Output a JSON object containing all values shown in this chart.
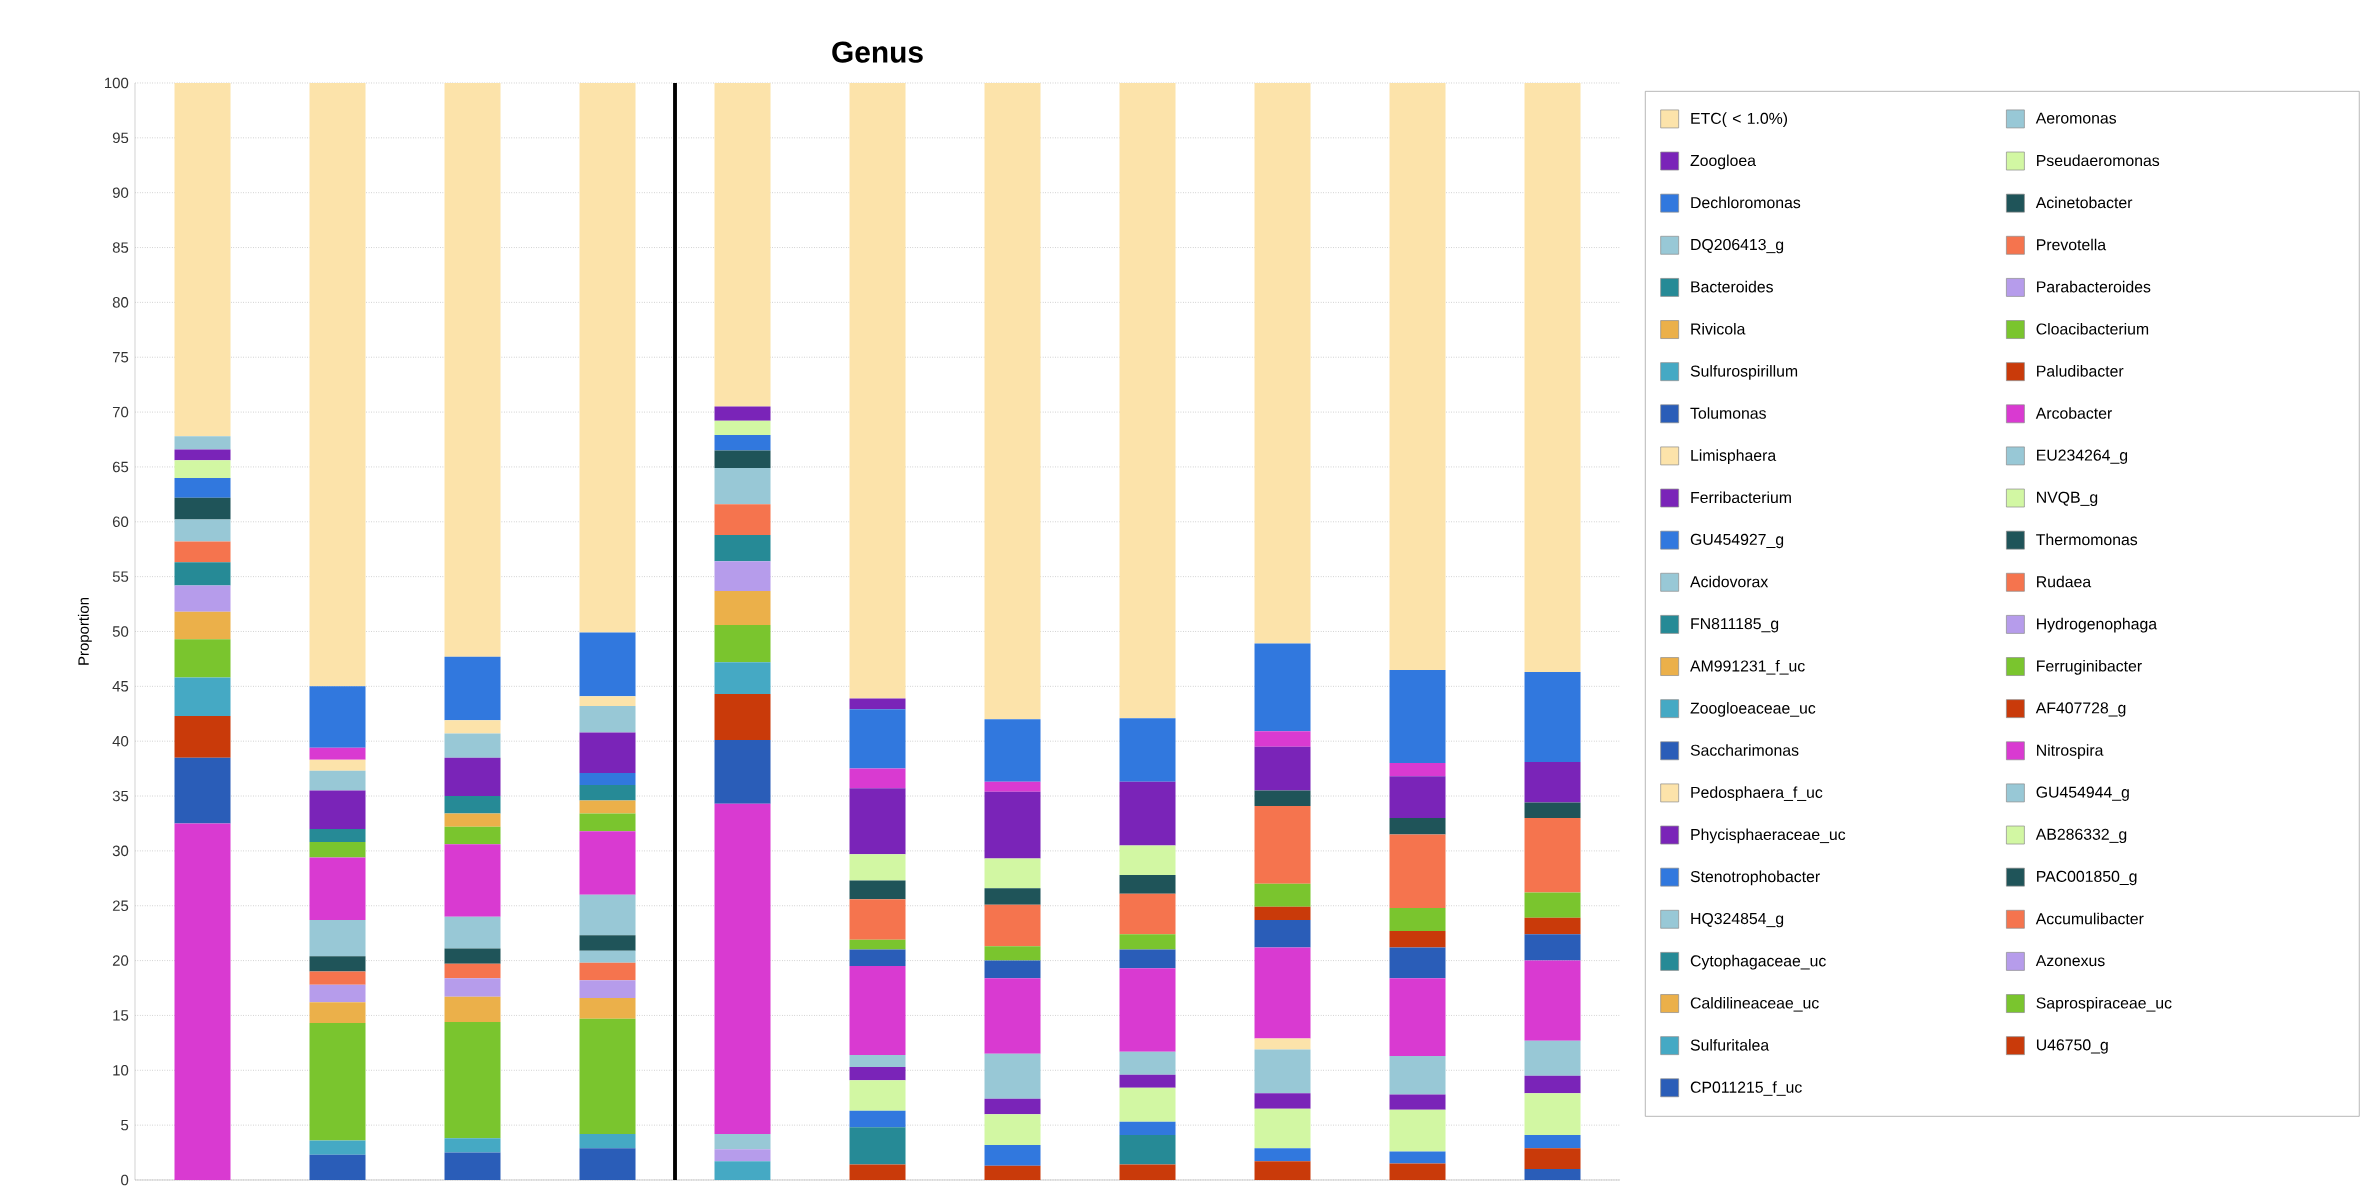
{
  "chart_data": {
    "type": "bar",
    "title": "Genus",
    "ylabel": "Proportion",
    "stacked": true,
    "categories": [
      null,
      null,
      null,
      null,
      null,
      null,
      null,
      null,
      null,
      null,
      null
    ],
    "ylim": [
      0,
      100
    ],
    "yticks": [
      0,
      5,
      10,
      15,
      20,
      25,
      30,
      35,
      40,
      45,
      50,
      55,
      60,
      65,
      70,
      75,
      80,
      85,
      90,
      95,
      100
    ],
    "grid": "y",
    "legend": "right",
    "series": [
      {
        "name": "CP011215_f_uc",
        "color": "#2a5db8",
        "values": [
          0,
          2.3,
          2.5,
          2.9,
          0,
          0,
          0,
          0,
          0,
          0,
          1.0
        ]
      },
      {
        "name": "U46750_g",
        "color": "#c93a0a",
        "values": [
          0,
          0,
          0,
          0,
          0,
          1.4,
          1.3,
          1.4,
          1.7,
          1.5,
          1.9
        ]
      },
      {
        "name": "Sulfuritalea",
        "color": "#45a9c4",
        "values": [
          0,
          1.3,
          1.3,
          1.3,
          1.7,
          0,
          0,
          0,
          0,
          0,
          0
        ]
      },
      {
        "name": "Saprospiraceae_uc",
        "color": "#7ac52e",
        "values": [
          0,
          10.7,
          10.6,
          10.5,
          0,
          0,
          0,
          0,
          0,
          0,
          0
        ]
      },
      {
        "name": "Caldilineaceae_uc",
        "color": "#ebb04a",
        "values": [
          0,
          1.9,
          2.3,
          1.9,
          0,
          0,
          0,
          0,
          0,
          0,
          0
        ]
      },
      {
        "name": "Azonexus",
        "color": "#b69ceb",
        "values": [
          0,
          1.6,
          1.7,
          1.6,
          1.1,
          0,
          0,
          0,
          0,
          0,
          0
        ]
      },
      {
        "name": "Cytophagaceae_uc",
        "color": "#268a96",
        "values": [
          0,
          0,
          0,
          0,
          0,
          3.4,
          0,
          2.7,
          0,
          0,
          0
        ]
      },
      {
        "name": "Accumulibacter",
        "color": "#f5744e",
        "values": [
          0,
          1.2,
          1.3,
          1.6,
          0,
          0,
          0,
          0,
          0,
          0,
          0
        ]
      },
      {
        "name": "HQ324854_g",
        "color": "#98c8d6",
        "values": [
          0,
          0,
          0,
          1.1,
          1.4,
          0,
          0,
          0,
          0,
          0,
          0
        ]
      },
      {
        "name": "PAC001850_g",
        "color": "#1f5459",
        "values": [
          0,
          1.4,
          1.4,
          1.4,
          0,
          0,
          0,
          0,
          0,
          0,
          0
        ]
      },
      {
        "name": "Stenotrophobacter",
        "color": "#3178de",
        "values": [
          0,
          0,
          0,
          0,
          0,
          1.5,
          1.9,
          1.2,
          1.2,
          1.1,
          1.2
        ]
      },
      {
        "name": "AB286332_g",
        "color": "#d2f7a3",
        "values": [
          0,
          0,
          0,
          0,
          0,
          2.8,
          2.8,
          3.1,
          3.6,
          3.8,
          3.8
        ]
      },
      {
        "name": "Phycisphaeraceae_uc",
        "color": "#7a24b8",
        "values": [
          0,
          0,
          0,
          0,
          0,
          1.2,
          1.4,
          1.2,
          1.4,
          1.4,
          1.6
        ]
      },
      {
        "name": "GU454944_g",
        "color": "#98c8d6",
        "values": [
          0,
          3.3,
          2.9,
          3.7,
          0,
          1.1,
          4.1,
          2.1,
          4.0,
          3.5,
          3.2
        ]
      },
      {
        "name": "Pedosphaera_f_uc",
        "color": "#fce3aa",
        "values": [
          0,
          0,
          0,
          0,
          0,
          0,
          0,
          0,
          1.0,
          0,
          0
        ]
      },
      {
        "name": "Nitrospira",
        "color": "#d93ad1",
        "values": [
          32.5,
          5.7,
          6.6,
          5.8,
          30.1,
          8.1,
          6.9,
          7.6,
          8.3,
          7.1,
          7.3
        ]
      },
      {
        "name": "Saccharimonas",
        "color": "#2a5db8",
        "values": [
          6.0,
          0,
          0,
          0,
          5.8,
          1.5,
          1.6,
          1.7,
          2.5,
          2.8,
          2.4
        ]
      },
      {
        "name": "AF407728_g",
        "color": "#c93a0a",
        "values": [
          3.8,
          0,
          0,
          0,
          4.2,
          0,
          0,
          0,
          1.2,
          1.5,
          1.5
        ]
      },
      {
        "name": "Zoogloeaceae_uc",
        "color": "#45a9c4",
        "values": [
          3.5,
          0,
          0,
          0,
          2.9,
          0,
          0,
          0,
          0,
          0,
          0
        ]
      },
      {
        "name": "Ferruginibacter",
        "color": "#7ac52e",
        "values": [
          3.5,
          1.4,
          1.6,
          1.6,
          3.4,
          0.9,
          1.3,
          1.4,
          2.1,
          2.1,
          2.3
        ]
      },
      {
        "name": "AM991231_f_uc",
        "color": "#ebb04a",
        "values": [
          2.5,
          0,
          1.2,
          1.2,
          3.1,
          0,
          0,
          0,
          0,
          0,
          0
        ]
      },
      {
        "name": "Hydrogenophaga",
        "color": "#b69ceb",
        "values": [
          2.4,
          0,
          0,
          0,
          2.7,
          0,
          0,
          0,
          0,
          0,
          0
        ]
      },
      {
        "name": "FN811185_g",
        "color": "#268a96",
        "values": [
          2.1,
          1.2,
          1.6,
          1.4,
          2.4,
          0,
          0,
          0,
          0,
          0,
          0
        ]
      },
      {
        "name": "Rudaea",
        "color": "#f5744e",
        "values": [
          1.9,
          0,
          0,
          0,
          2.8,
          3.7,
          3.8,
          3.7,
          7.1,
          6.7,
          6.8
        ]
      },
      {
        "name": "Acidovorax",
        "color": "#98c8d6",
        "values": [
          2.0,
          0,
          0,
          0,
          3.3,
          0,
          0,
          0,
          0,
          0,
          0
        ]
      },
      {
        "name": "Thermomonas",
        "color": "#1f5459",
        "values": [
          2.0,
          0,
          0,
          0,
          1.6,
          1.7,
          1.5,
          1.7,
          1.4,
          1.5,
          1.4
        ]
      },
      {
        "name": "GU454927_g",
        "color": "#3178de",
        "values": [
          1.8,
          0,
          0,
          1.1,
          1.4,
          0,
          0,
          0,
          0,
          0,
          0
        ]
      },
      {
        "name": "NVQB_g",
        "color": "#d2f7a3",
        "values": [
          1.6,
          0,
          0,
          0,
          1.3,
          2.4,
          2.7,
          2.7,
          0,
          0,
          0
        ]
      },
      {
        "name": "Ferribacterium",
        "color": "#7a24b8",
        "values": [
          1.0,
          3.5,
          3.5,
          3.7,
          1.3,
          6.0,
          6.1,
          5.8,
          4.0,
          3.8,
          3.7
        ]
      },
      {
        "name": "EU234264_g",
        "color": "#98c8d6",
        "values": [
          1.2,
          1.8,
          2.2,
          2.4,
          0,
          0,
          0,
          0,
          0,
          0,
          0
        ]
      },
      {
        "name": "Limisphaera",
        "color": "#fce3aa",
        "values": [
          0,
          1.0,
          1.2,
          0.9,
          0,
          0,
          0,
          0,
          0,
          0,
          0
        ]
      },
      {
        "name": "Arcobacter",
        "color": "#d93ad1",
        "values": [
          0,
          1.1,
          0,
          0,
          0,
          1.8,
          0.9,
          0,
          1.4,
          1.2,
          0
        ]
      },
      {
        "name": "Tolumonas",
        "color": "#2a5db8",
        "values": [
          0,
          0,
          0,
          0,
          0,
          0,
          0,
          0,
          0,
          0,
          0
        ]
      },
      {
        "name": "Paludibacter",
        "color": "#c93a0a",
        "values": [
          0,
          0,
          0,
          0,
          0,
          0,
          0,
          0,
          0,
          0,
          0
        ]
      },
      {
        "name": "Sulfurospirillum",
        "color": "#45a9c4",
        "values": [
          0,
          0,
          0,
          0,
          0,
          0,
          0,
          0,
          0,
          0,
          0
        ]
      },
      {
        "name": "Cloacibacterium",
        "color": "#7ac52e",
        "values": [
          0,
          0,
          0,
          0,
          0,
          0,
          0,
          0,
          0,
          0,
          0
        ]
      },
      {
        "name": "Rivicola",
        "color": "#ebb04a",
        "values": [
          0,
          0,
          0,
          0,
          0,
          0,
          0,
          0,
          0,
          0,
          0
        ]
      },
      {
        "name": "Parabacteroides",
        "color": "#b69ceb",
        "values": [
          0,
          0,
          0,
          0,
          0,
          0,
          0,
          0,
          0,
          0,
          0
        ]
      },
      {
        "name": "Bacteroides",
        "color": "#268a96",
        "values": [
          0,
          0,
          0,
          0,
          0,
          0,
          0,
          0,
          0,
          0,
          0
        ]
      },
      {
        "name": "Prevotella",
        "color": "#f5744e",
        "values": [
          0,
          0,
          0,
          0,
          0,
          0,
          0,
          0,
          0,
          0,
          0
        ]
      },
      {
        "name": "DQ206413_g",
        "color": "#98c8d6",
        "values": [
          0,
          0,
          0,
          0,
          0,
          0,
          0,
          0,
          0,
          0,
          0
        ]
      },
      {
        "name": "Acinetobacter",
        "color": "#1f5459",
        "values": [
          0,
          0,
          0,
          0,
          0,
          0,
          0,
          0,
          0,
          0,
          0
        ]
      },
      {
        "name": "Dechloromonas",
        "color": "#3178de",
        "values": [
          0,
          5.6,
          5.8,
          5.8,
          0,
          5.4,
          5.7,
          5.8,
          8.0,
          8.5,
          8.2
        ]
      },
      {
        "name": "Pseudaeromonas",
        "color": "#d2f7a3",
        "values": [
          0,
          0,
          0,
          0,
          0,
          0,
          0,
          0,
          0,
          0,
          0
        ]
      },
      {
        "name": "Zoogloea",
        "color": "#7a24b8",
        "values": [
          0,
          0,
          0,
          0,
          0,
          1.0,
          0,
          0,
          0,
          0,
          0
        ]
      },
      {
        "name": "Aeromonas",
        "color": "#98c8d6",
        "values": [
          0,
          0,
          0,
          0,
          0,
          0,
          0,
          0,
          0,
          0,
          0
        ]
      },
      {
        "name": "ETC( < 1.0%)",
        "color": "#fce3aa",
        "values": [
          32.2,
          55.0,
          52.3,
          50.1,
          29.5,
          56.1,
          58.0,
          57.9,
          51.1,
          53.5,
          53.7
        ]
      }
    ]
  }
}
